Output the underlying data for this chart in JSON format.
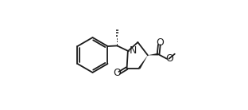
{
  "bg_color": "#ffffff",
  "line_color": "#1a1a1a",
  "lw": 1.3,
  "figsize": [
    3.12,
    1.38
  ],
  "dpi": 100,
  "xlim": [
    -0.05,
    1.05
  ],
  "ylim": [
    -0.05,
    1.05
  ]
}
